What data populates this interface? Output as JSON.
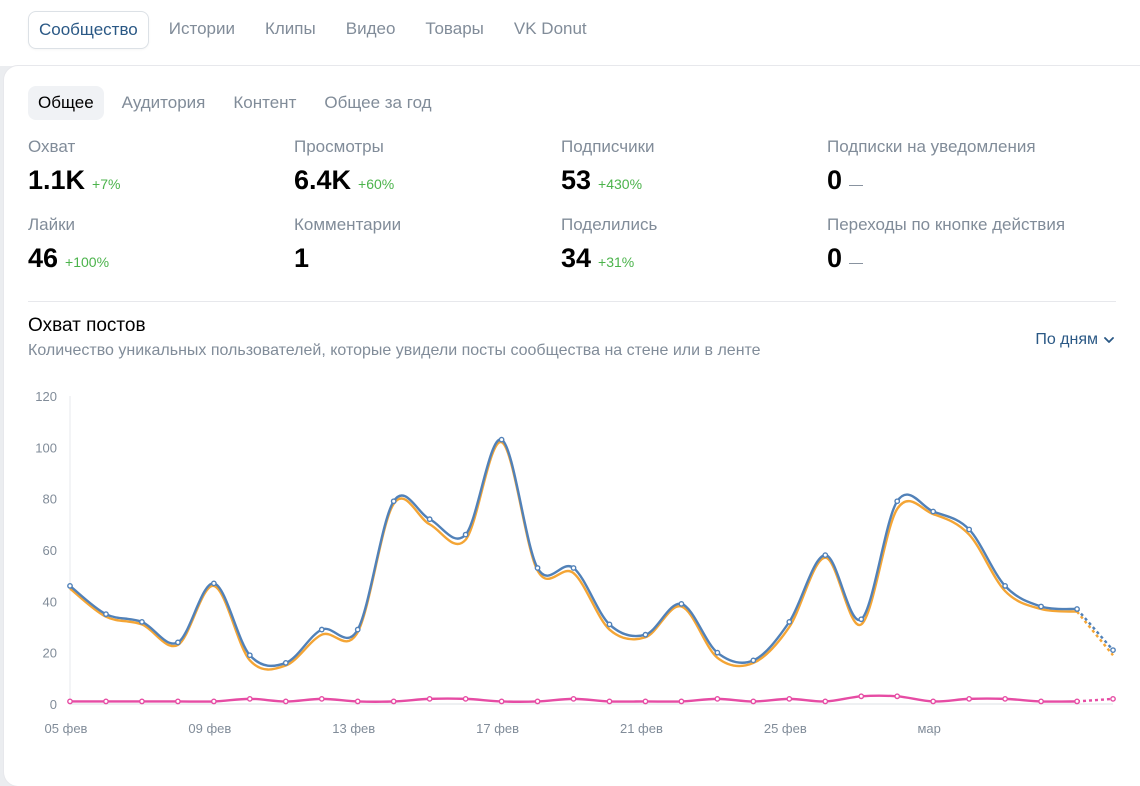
{
  "top_tabs": [
    "Сообщество",
    "Истории",
    "Клипы",
    "Видео",
    "Товары",
    "VK Donut"
  ],
  "sub_tabs": [
    "Общее",
    "Аудитория",
    "Контент",
    "Общее за год"
  ],
  "metrics": [
    {
      "label": "Охват",
      "value": "1.1K",
      "delta": "+7%",
      "tone": "pos"
    },
    {
      "label": "Просмотры",
      "value": "6.4K",
      "delta": "+60%",
      "tone": "pos"
    },
    {
      "label": "Подписчики",
      "value": "53",
      "delta": "+430%",
      "tone": "pos"
    },
    {
      "label": "Подписки на уведомления",
      "value": "0",
      "delta": "—",
      "tone": "neutral"
    },
    {
      "label": "Лайки",
      "value": "46",
      "delta": "+100%",
      "tone": "pos"
    },
    {
      "label": "Комментарии",
      "value": "1",
      "delta": "",
      "tone": "pos"
    },
    {
      "label": "Поделились",
      "value": "34",
      "delta": "+31%",
      "tone": "pos"
    },
    {
      "label": "Переходы по кнопке действия",
      "value": "0",
      "delta": "—",
      "tone": "neutral"
    }
  ],
  "chart_section": {
    "title": "Охват постов",
    "subtitle": "Количество уникальных пользователей, которые увидели посты сообщества на стене или в ленте",
    "period_label": "По дням",
    "chevron_icon": "chevron-down-icon"
  },
  "colors": {
    "accent": "#2a5885",
    "positive": "#4bb34b",
    "series_total": "#5181b8",
    "series_subscribers": "#f4a535",
    "series_third": "#e64ca4"
  },
  "chart_data": {
    "type": "line",
    "x": [
      "05 фев",
      "06 фев",
      "07 фев",
      "08 фев",
      "09 фев",
      "10 фев",
      "11 фев",
      "12 фев",
      "13 фев",
      "14 фев",
      "15 фев",
      "16 фев",
      "17 фев",
      "18 фев",
      "19 фев",
      "20 фев",
      "21 фев",
      "22 фев",
      "23 фев",
      "24 фев",
      "25 фев",
      "26 фев",
      "27 фев",
      "28 фев",
      "01 мар",
      "02 мар",
      "03 мар",
      "04 мар",
      "05 мар",
      "06 мар"
    ],
    "x_tick_labels": [
      "05 фев",
      "09 фев",
      "13 фев",
      "17 фев",
      "21 фев",
      "25 фев",
      "мар"
    ],
    "x_tick_indices": [
      0,
      4,
      8,
      12,
      16,
      20,
      24
    ],
    "ylim": [
      0,
      120
    ],
    "y_ticks": [
      0,
      20,
      40,
      60,
      80,
      100,
      120
    ],
    "dashed_last_segment": true,
    "series": [
      {
        "color": "#5181b8",
        "values": [
          46,
          35,
          32,
          24,
          47,
          19,
          16,
          29,
          29,
          79,
          72,
          66,
          103,
          53,
          53,
          31,
          27,
          39,
          20,
          17,
          32,
          58,
          33,
          79,
          75,
          68,
          46,
          38,
          37,
          21
        ]
      },
      {
        "color": "#f4a535",
        "values": [
          45,
          34,
          31,
          23,
          46,
          17,
          15,
          27,
          28,
          78,
          70,
          64,
          102,
          52,
          51,
          29,
          26,
          38,
          18,
          16,
          30,
          57,
          31,
          76,
          74,
          66,
          44,
          37,
          36,
          19
        ]
      },
      {
        "color": "#e64ca4",
        "values": [
          1,
          1,
          1,
          1,
          1,
          2,
          1,
          2,
          1,
          1,
          2,
          2,
          1,
          1,
          2,
          1,
          1,
          1,
          2,
          1,
          2,
          1,
          3,
          3,
          1,
          2,
          2,
          1,
          1,
          2
        ]
      }
    ]
  }
}
